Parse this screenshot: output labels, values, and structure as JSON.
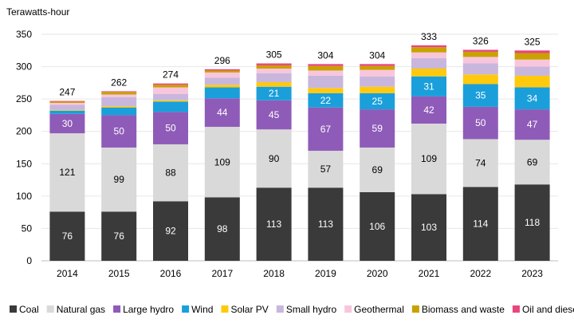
{
  "chart_data": {
    "type": "bar",
    "stacked": true,
    "ylabel": "Terawatts-hour",
    "ylim": [
      0,
      350
    ],
    "yticks": [
      0,
      50,
      100,
      150,
      200,
      250,
      300,
      350
    ],
    "grid": true,
    "legend_position": "bottom",
    "categories": [
      "2014",
      "2015",
      "2016",
      "2017",
      "2018",
      "2019",
      "2020",
      "2021",
      "2022",
      "2023"
    ],
    "totals": [
      247,
      262,
      274,
      296,
      305,
      304,
      304,
      333,
      326,
      325
    ],
    "series": [
      {
        "name": "Coal",
        "color": "#3a3a3a",
        "labelColor": "#ffffff",
        "labeled": true,
        "values": [
          76,
          76,
          92,
          98,
          113,
          113,
          106,
          103,
          114,
          118
        ]
      },
      {
        "name": "Natural gas",
        "color": "#d9d9d9",
        "labelColor": "#000000",
        "labeled": true,
        "values": [
          121,
          99,
          88,
          109,
          90,
          57,
          69,
          109,
          74,
          69
        ]
      },
      {
        "name": "Large hydro",
        "color": "#8f5bb8",
        "labelColor": "#ffffff",
        "labeled": true,
        "values": [
          30,
          50,
          50,
          44,
          45,
          67,
          59,
          42,
          50,
          47
        ]
      },
      {
        "name": "Wind",
        "color": "#1a9fdb",
        "labelColor": "#ffffff",
        "labeled": true,
        "values": [
          5,
          12,
          16,
          17,
          21,
          22,
          25,
          31,
          35,
          34
        ]
      },
      {
        "name": "Solar PV",
        "color": "#ffc90e",
        "labelColor": "#000000",
        "labeled": false,
        "values": [
          1,
          2,
          2,
          4,
          7,
          8,
          10,
          12,
          15,
          18
        ]
      },
      {
        "name": "Small hydro",
        "color": "#c9b6dc",
        "labelColor": "#000000",
        "labeled": false,
        "values": [
          8,
          14,
          10,
          11,
          14,
          19,
          16,
          16,
          17,
          14
        ]
      },
      {
        "name": "Geothermal",
        "color": "#f8c6dc",
        "labelColor": "#000000",
        "labeled": false,
        "values": [
          3,
          4,
          10,
          8,
          7,
          8,
          10,
          9,
          10,
          11
        ]
      },
      {
        "name": "Biomass and waste",
        "color": "#c9a100",
        "labelColor": "#000000",
        "labeled": false,
        "values": [
          2,
          4,
          4,
          3,
          5,
          7,
          6,
          8,
          8,
          10
        ]
      },
      {
        "name": "Oil and diesel",
        "color": "#e8467c",
        "labelColor": "#000000",
        "labeled": false,
        "values": [
          1,
          1,
          2,
          2,
          3,
          3,
          3,
          3,
          3,
          4
        ]
      }
    ]
  }
}
